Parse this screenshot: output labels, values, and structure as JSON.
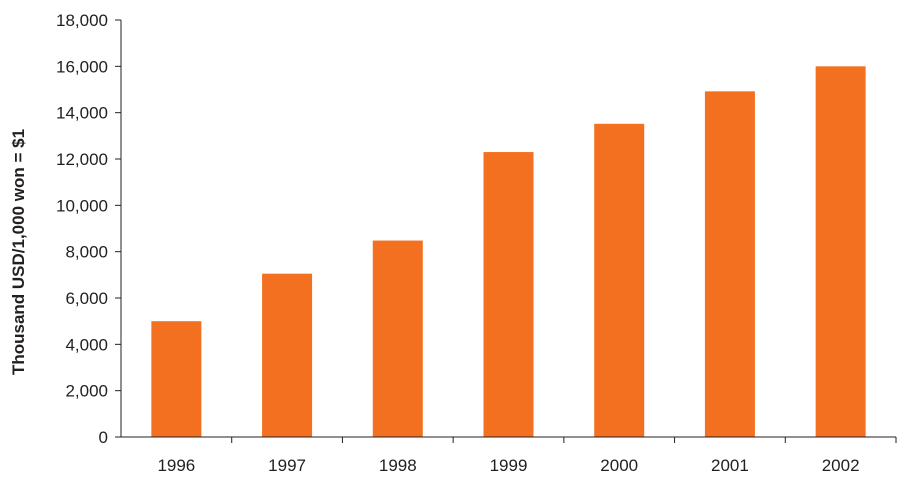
{
  "chart_data": {
    "type": "bar",
    "title": "",
    "xlabel": "",
    "ylabel": "Thousand USD/1,000 won = $1",
    "categories": [
      "1996",
      "1997",
      "1998",
      "1999",
      "2000",
      "2001",
      "2002"
    ],
    "values": [
      5000,
      7050,
      8480,
      12300,
      13520,
      14920,
      16000
    ],
    "ylim": [
      0,
      18000
    ],
    "yticks": [
      0,
      2000,
      4000,
      6000,
      8000,
      10000,
      12000,
      14000,
      16000,
      18000
    ],
    "ytick_labels": [
      "0",
      "2,000",
      "4,000",
      "6,000",
      "8,000",
      "10,000",
      "12,000",
      "14,000",
      "16,000",
      "18,000"
    ],
    "bar_color": "#f37021",
    "axis_color": "#231f20",
    "grid": false,
    "legend": "none"
  }
}
